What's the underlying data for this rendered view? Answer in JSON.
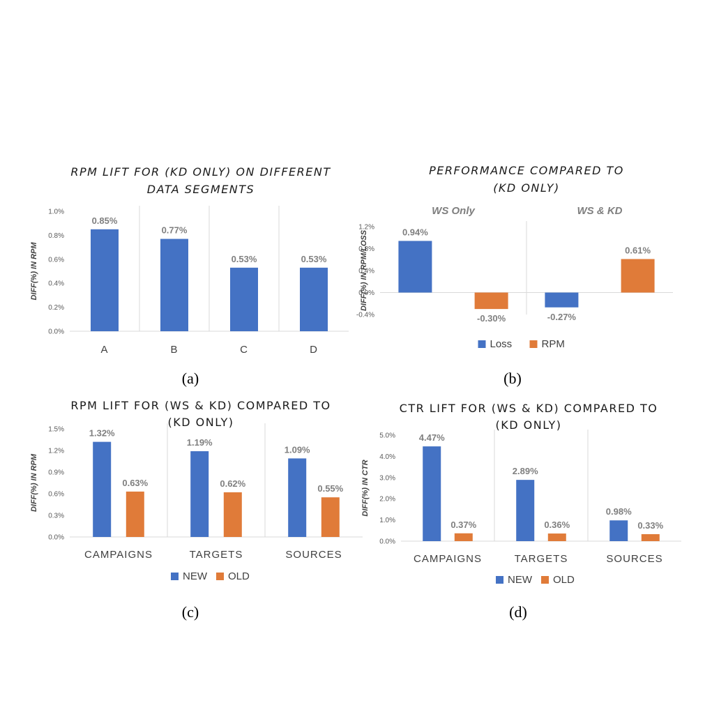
{
  "colors": {
    "blue": "#4472C4",
    "orange": "#E07B39",
    "axis": "#D9D9D9",
    "divider": "#D9D9D9"
  },
  "chart_data": [
    {
      "id": "a",
      "type": "bar",
      "title_lines": [
        "RPM LIFT FOR (KD ONLY) ON DIFFERENT",
        "DATA SEGMENTS"
      ],
      "ylabel": "DIFF(%) IN RPM",
      "ylim": [
        0,
        1.0
      ],
      "yticks": [
        0,
        0.2,
        0.4,
        0.6,
        0.8,
        1.0
      ],
      "ytick_labels": [
        "0.0%",
        "0.2%",
        "0.4%",
        "0.6%",
        "0.8%",
        "1.0%"
      ],
      "categories": [
        "A",
        "B",
        "C",
        "D"
      ],
      "series": [
        {
          "values": [
            0.85,
            0.77,
            0.53,
            0.53
          ],
          "labels": [
            "0.85%",
            "0.77%",
            "0.53%",
            "0.53%"
          ]
        }
      ],
      "caption": "(a)"
    },
    {
      "id": "b",
      "type": "bar",
      "title_lines": [
        "PERFORMANCE  COMPARED TO",
        "(KD ONLY)"
      ],
      "ylabel": "DIFF(%) IN  RPM/LOSS",
      "ylim": [
        -0.4,
        1.2
      ],
      "yticks": [
        -0.4,
        0,
        0.4,
        0.8,
        1.2
      ],
      "ytick_labels": [
        "-0.4%",
        "0.0%",
        "0.4%",
        "0.8%",
        "1.2%"
      ],
      "categories": [
        "WS Only",
        "WS & KD"
      ],
      "series": [
        {
          "name": "Loss",
          "values": [
            0.94,
            -0.27
          ],
          "labels": [
            "0.94%",
            "-0.27%"
          ]
        },
        {
          "name": "RPM",
          "values": [
            -0.3,
            0.61
          ],
          "labels": [
            "-0.30%",
            "0.61%"
          ]
        }
      ],
      "legend": "bottom",
      "caption": "(b)"
    },
    {
      "id": "c",
      "type": "bar",
      "title_lines": [
        "RPM LIFT FOR (WS & KD) COMPARED TO",
        "(KD ONLY)"
      ],
      "ylabel": "DIFF(%) IN RPM",
      "ylim": [
        0,
        1.5
      ],
      "yticks": [
        0,
        0.3,
        0.6,
        0.9,
        1.2,
        1.5
      ],
      "ytick_labels": [
        "0.0%",
        "0.3%",
        "0.6%",
        "0.9%",
        "1.2%",
        "1.5%"
      ],
      "categories": [
        "CAMPAIGNS",
        "TARGETS",
        "SOURCES"
      ],
      "series": [
        {
          "name": "NEW",
          "values": [
            1.32,
            1.19,
            1.09
          ],
          "labels": [
            "1.32%",
            "1.19%",
            "1.09%"
          ]
        },
        {
          "name": "OLD",
          "values": [
            0.63,
            0.62,
            0.55
          ],
          "labels": [
            "0.63%",
            "0.62%",
            "0.55%"
          ]
        }
      ],
      "legend": "bottom",
      "caption": "(c)"
    },
    {
      "id": "d",
      "type": "bar",
      "title_lines": [
        "CTR LIFT FOR (WS & KD) COMPARED TO",
        "(KD ONLY)"
      ],
      "ylabel": "DIFF(%) IN CTR",
      "ylim": [
        0,
        5.0
      ],
      "yticks": [
        0,
        1,
        2,
        3,
        4,
        5
      ],
      "ytick_labels": [
        "0.0%",
        "1.0%",
        "2.0%",
        "3.0%",
        "4.0%",
        "5.0%"
      ],
      "categories": [
        "CAMPAIGNS",
        "TARGETS",
        "SOURCES"
      ],
      "series": [
        {
          "name": "NEW",
          "values": [
            4.47,
            2.89,
            0.98
          ],
          "labels": [
            "4.47%",
            "2.89%",
            "0.98%"
          ]
        },
        {
          "name": "OLD",
          "values": [
            0.37,
            0.36,
            0.33
          ],
          "labels": [
            "0.37%",
            "0.36%",
            "0.33%"
          ]
        }
      ],
      "legend": "bottom",
      "caption": "(d)"
    }
  ]
}
